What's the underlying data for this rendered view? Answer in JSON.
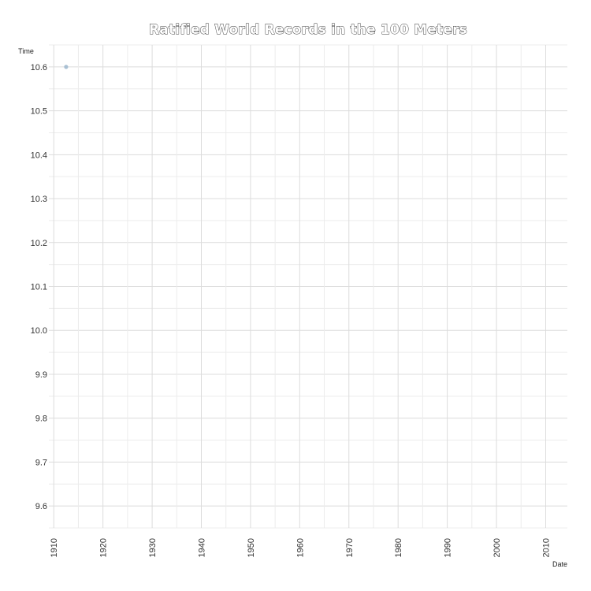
{
  "chart_data": {
    "type": "scatter",
    "title": "Ratified World Records in the 100 Meters",
    "xlabel": "Date",
    "ylabel": "Time",
    "x_axis_type": "date",
    "xlim": [
      "1909-01-01",
      "2014-06-01"
    ],
    "ylim": [
      9.55,
      10.65
    ],
    "x_ticks": [
      "1910",
      "1920",
      "1930",
      "1940",
      "1950",
      "1960",
      "1970",
      "1980",
      "1990",
      "2000",
      "2010"
    ],
    "y_ticks": [
      "9.6",
      "9.7",
      "9.8",
      "9.9",
      "10.0",
      "10.1",
      "10.2",
      "10.3",
      "10.4",
      "10.5",
      "10.6"
    ],
    "grid": true,
    "points": [
      {
        "x": "1912-07-06",
        "y": 10.6
      }
    ],
    "colors": {
      "point": "#a9c0d3",
      "grid": "#dcdcdc"
    }
  }
}
